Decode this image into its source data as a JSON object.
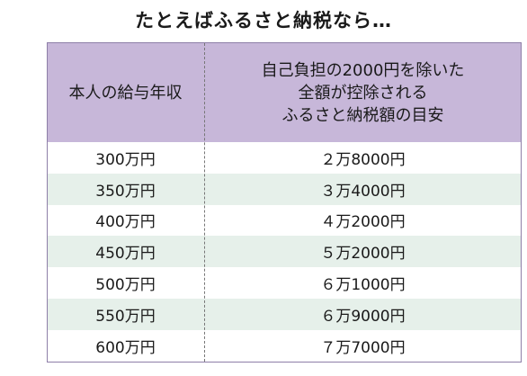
{
  "title": "たとえばふるさと納税なら…",
  "table": {
    "headers": {
      "income": "本人の給与年収",
      "tax_lines": [
        "自己負担の2000円を除いた",
        "全額が控除される",
        "ふるさと納税額の目安"
      ]
    },
    "rows": [
      {
        "income": "300万円",
        "amount": "２万8000円"
      },
      {
        "income": "350万円",
        "amount": "３万4000円"
      },
      {
        "income": "400万円",
        "amount": "４万2000円"
      },
      {
        "income": "450万円",
        "amount": "５万2000円"
      },
      {
        "income": "500万円",
        "amount": "６万1000円"
      },
      {
        "income": "550万円",
        "amount": "６万9000円"
      },
      {
        "income": "600万円",
        "amount": "７万7000円"
      }
    ]
  },
  "colors": {
    "header_bg": "#c7b7d9",
    "alt_row_bg": "#e6f0ea",
    "border": "#8e7fa8"
  }
}
